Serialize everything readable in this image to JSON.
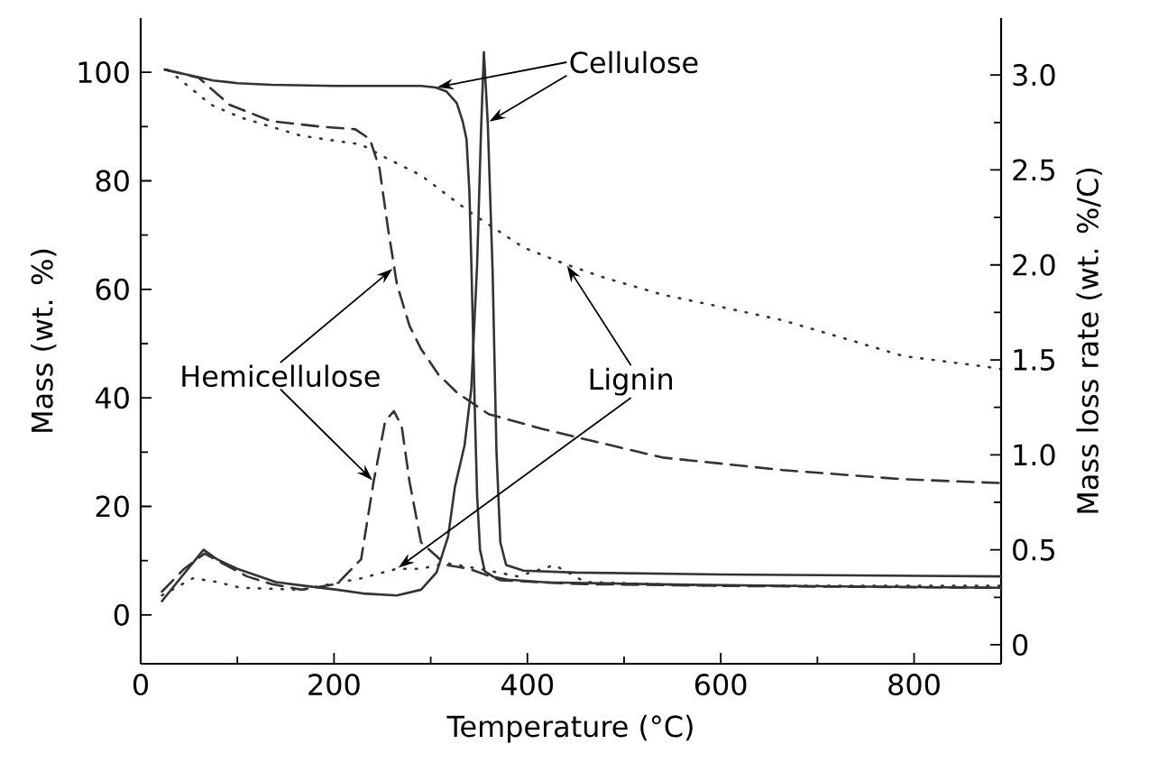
{
  "chart_data": {
    "type": "line",
    "xlabel": "Temperature (°C)",
    "ylabel": "Mass (wt. %)",
    "y2label": "Mass loss rate (wt. %/C)",
    "xlim": [
      0,
      890
    ],
    "ylim": [
      -9,
      110
    ],
    "y2lim": [
      -0.1,
      3.3
    ],
    "xticks": [
      0,
      {
        "value": 100,
        "label": null
      },
      200,
      {
        "value": 300,
        "label": null
      },
      400,
      {
        "value": 500,
        "label": null
      },
      600,
      {
        "value": 700,
        "label": null
      },
      800
    ],
    "yticks": [
      0,
      {
        "value": 10,
        "label": null
      },
      20,
      {
        "value": 30,
        "label": null
      },
      40,
      {
        "value": 50,
        "label": null
      },
      60,
      {
        "value": 70,
        "label": null
      },
      80,
      {
        "value": 90,
        "label": null
      },
      100
    ],
    "y2ticks": [
      0,
      {
        "value": 0.25,
        "label": null
      },
      0.5,
      {
        "value": 0.75,
        "label": null
      },
      {
        "value": 1,
        "label": "1.0"
      },
      {
        "value": 1.25,
        "label": null
      },
      1.5,
      {
        "value": 1.75,
        "label": null
      },
      {
        "value": 2,
        "label": "2.0"
      },
      {
        "value": 2.25,
        "label": null
      },
      2.5,
      {
        "value": 2.75,
        "label": null
      },
      {
        "value": 3,
        "label": "3.0"
      }
    ],
    "series": [
      {
        "color": "#333333",
        "line_style": "solid",
        "x": [
          25,
          50,
          75,
          100,
          135,
          200,
          250,
          290,
          305,
          316,
          327,
          333,
          337,
          340,
          342,
          344,
          346,
          348,
          351,
          356,
          365,
          380,
          420,
          550,
          700,
          890
        ],
        "values": [
          100.5,
          99.5,
          98.5,
          98,
          97.7,
          97.5,
          97.5,
          97.5,
          97.2,
          96.5,
          94.3,
          91,
          87.7,
          78,
          65,
          50,
          35,
          22,
          12,
          8,
          7,
          6.5,
          6,
          5.6,
          5.3,
          5
        ]
      },
      {
        "color": "#333333",
        "line_style": "dashed",
        "x": [
          25,
          60,
          92,
          135,
          185,
          222,
          237,
          247,
          256,
          265,
          278,
          290,
          308,
          327,
          360,
          415,
          452,
          540,
          664,
          789,
          890
        ],
        "values": [
          100.5,
          99,
          94,
          91,
          90,
          89.5,
          87.7,
          82.3,
          71,
          61,
          53.3,
          49,
          44.3,
          41,
          37,
          34.3,
          32.7,
          29,
          26.7,
          25,
          24.3
        ]
      },
      {
        "color": "#333333",
        "line_style": "dotted",
        "x": [
          28,
          73,
          103,
          166,
          228,
          253,
          290,
          340,
          396,
          440,
          477,
          540,
          602,
          664,
          727,
          789,
          876,
          890
        ],
        "values": [
          100.5,
          94,
          91.7,
          88.3,
          86.7,
          84.3,
          81,
          74.3,
          67.7,
          64.6,
          62.3,
          59,
          56.7,
          54.3,
          51,
          47.7,
          45.7,
          45.3
        ]
      },
      {
        "color": "#333333",
        "line_style": "solid",
        "axis": "y2",
        "x": [
          22,
          41,
          65,
          79,
          100,
          140,
          170,
          203,
          230,
          265,
          290,
          306,
          318,
          325,
          335,
          342,
          348,
          352,
          355,
          359,
          364,
          368,
          372,
          378,
          396,
          450,
          600,
          890
        ],
        "values": [
          0.23,
          0.35,
          0.5,
          0.45,
          0.4,
          0.33,
          0.31,
          0.29,
          0.27,
          0.26,
          0.29,
          0.38,
          0.57,
          0.83,
          1.05,
          1.35,
          2,
          2.7,
          3.12,
          2.75,
          1.97,
          1.02,
          0.54,
          0.42,
          0.39,
          0.38,
          0.37,
          0.36
        ]
      },
      {
        "color": "#333333",
        "line_style": "dashed",
        "axis": "y2",
        "x": [
          22,
          45,
          66,
          84,
          110,
          135,
          166,
          203,
          228,
          241,
          253,
          262,
          270,
          278,
          290,
          316,
          340,
          372,
          452,
          600,
          890
        ],
        "values": [
          0.28,
          0.4,
          0.48,
          0.43,
          0.36,
          0.32,
          0.29,
          0.32,
          0.45,
          0.86,
          1.18,
          1.23,
          1.15,
          0.86,
          0.54,
          0.42,
          0.4,
          0.34,
          0.32,
          0.31,
          0.3
        ]
      },
      {
        "color": "#333333",
        "line_style": "dotted",
        "axis": "y2",
        "x": [
          22,
          54,
          80,
          103,
          166,
          228,
          265,
          290,
          316,
          350,
          390,
          428,
          460,
          600,
          890
        ],
        "values": [
          0.26,
          0.35,
          0.33,
          0.3,
          0.29,
          0.35,
          0.4,
          0.4,
          0.43,
          0.4,
          0.36,
          0.42,
          0.33,
          0.31,
          0.31
        ]
      }
    ],
    "annotations": [
      {
        "text": "Cellulose",
        "x": 305,
        "y": 97.2
      },
      {
        "text": "Hemicellulose",
        "x": 262,
        "y": 64
      },
      {
        "text": "Lignin",
        "x": 440,
        "y": 64.6
      }
    ]
  }
}
